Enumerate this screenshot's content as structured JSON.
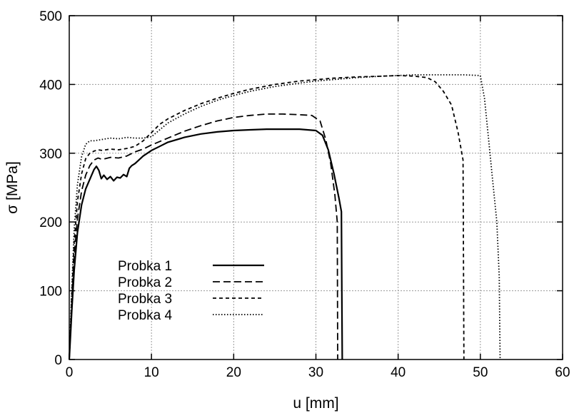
{
  "chart_data": {
    "type": "line",
    "title": "",
    "xlabel": "u [mm]",
    "ylabel": "σ [MPa]",
    "xlim": [
      0,
      60
    ],
    "ylim": [
      0,
      500
    ],
    "xticks": [
      "0",
      "10",
      "20",
      "30",
      "40",
      "50",
      "60"
    ],
    "yticks": [
      "0",
      "100",
      "200",
      "300",
      "400",
      "500"
    ],
    "grid": true,
    "legend_position": "bottom-left",
    "series": [
      {
        "name": "Probka 1",
        "style": "solid",
        "x": [
          0,
          0.3,
          0.6,
          1.0,
          1.5,
          2.0,
          2.5,
          3.0,
          3.3,
          3.6,
          3.9,
          4.2,
          4.6,
          5.0,
          5.4,
          5.8,
          6.2,
          6.6,
          7.0,
          7.3,
          7.6,
          8.0,
          9.0,
          10,
          11,
          12,
          14,
          16,
          18,
          20,
          22,
          24,
          26,
          28,
          30,
          30.8,
          31.5,
          32.2,
          32.8,
          33.1,
          33.15,
          33.2
        ],
        "y": [
          0,
          70,
          130,
          185,
          225,
          248,
          262,
          276,
          281,
          275,
          263,
          268,
          262,
          266,
          260,
          265,
          264,
          269,
          266,
          278,
          282,
          285,
          296,
          304,
          310,
          316,
          323,
          328,
          331,
          333,
          334,
          335,
          335,
          335,
          333,
          326,
          305,
          270,
          235,
          215,
          100,
          0
        ]
      },
      {
        "name": "Probka 2",
        "style": "dashed",
        "x": [
          0,
          0.3,
          0.6,
          1.0,
          1.5,
          2.0,
          2.5,
          3.0,
          3.5,
          4.0,
          5.0,
          6.0,
          7.0,
          8.0,
          9.0,
          10,
          12,
          14,
          16,
          18,
          20,
          22,
          24,
          26,
          28,
          29.5,
          30.5,
          31.2,
          31.8,
          32.3,
          32.6,
          32.65
        ],
        "y": [
          0,
          80,
          150,
          205,
          245,
          268,
          282,
          290,
          293,
          291,
          294,
          293,
          296,
          302,
          306,
          312,
          322,
          332,
          340,
          347,
          352,
          355,
          357,
          357,
          356,
          355,
          347,
          320,
          285,
          240,
          200,
          0
        ]
      },
      {
        "name": "Probka 3",
        "style": "short-dashed",
        "x": [
          0,
          0.3,
          0.6,
          1.0,
          1.5,
          2.0,
          2.5,
          3.0,
          3.5,
          4.0,
          5.0,
          6.0,
          7.0,
          8.0,
          9.0,
          10,
          11,
          12,
          14,
          16,
          18,
          20,
          22,
          25,
          28,
          30,
          32,
          35,
          38,
          40,
          42,
          43.5,
          44.5,
          45.5,
          46.5,
          47.3,
          47.9,
          48.0
        ],
        "y": [
          0,
          90,
          170,
          230,
          270,
          292,
          300,
          303,
          305,
          304,
          306,
          305,
          307,
          310,
          318,
          330,
          342,
          350,
          362,
          372,
          380,
          387,
          393,
          400,
          405,
          407,
          409,
          411,
          412,
          413,
          412,
          410,
          404,
          390,
          370,
          330,
          290,
          0
        ]
      },
      {
        "name": "Probka 4",
        "style": "dotted",
        "x": [
          0,
          0.3,
          0.6,
          1.0,
          1.5,
          2.0,
          2.5,
          3.0,
          4.0,
          5.0,
          6.0,
          7.0,
          8.0,
          9.0,
          10,
          11,
          12,
          14,
          16,
          18,
          20,
          22,
          25,
          28,
          30,
          32,
          35,
          38,
          40,
          42,
          45,
          48,
          50,
          50.5,
          51.0,
          51.5,
          52.0,
          52.3,
          52.4
        ],
        "y": [
          0,
          100,
          190,
          255,
          295,
          313,
          318,
          318,
          320,
          322,
          321,
          323,
          322,
          322,
          324,
          334,
          344,
          357,
          368,
          377,
          384,
          390,
          397,
          402,
          405,
          407,
          410,
          412,
          413,
          414,
          414,
          414,
          413,
          380,
          320,
          260,
          200,
          120,
          0
        ]
      }
    ]
  }
}
